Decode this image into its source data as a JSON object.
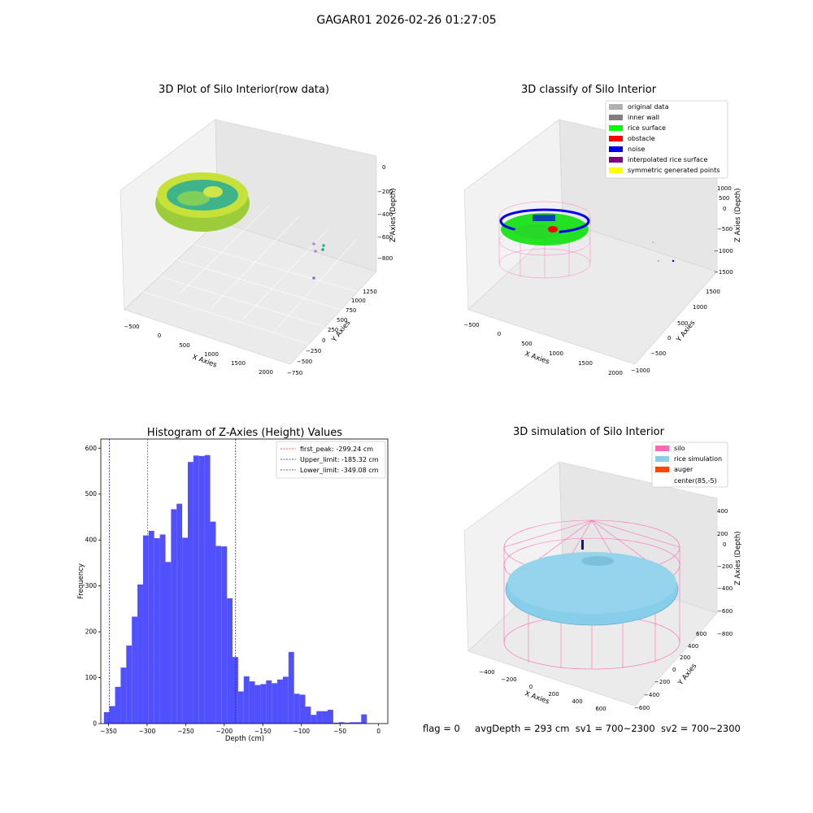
{
  "figure_title": "GAGAR01 2026-02-26 01:27:05",
  "footer": {
    "flag": "flag = 0",
    "avg_depth": "avgDepth = 293 cm",
    "sv1": "sv1 = 700~2300",
    "sv2": "sv2 = 700~2300"
  },
  "colors": {
    "hist_bar": "#5050ff",
    "first_peak": "#d62728",
    "limits": "#1f1fb4",
    "original": "#b0b0b0",
    "inner_wall": "#808080",
    "rice_surface": "#00ff00",
    "obstacle": "#ff0000",
    "noise": "#0000ee",
    "interpolated": "#800080",
    "symmetric": "#ffff00",
    "silo": "#ff69b4",
    "rice_sim": "#87ceeb",
    "auger": "#ff4500"
  },
  "panels": {
    "raw": {
      "title": "3D Plot of Silo Interior(row data)",
      "x_label": "X Axies",
      "y_label": "Y Axies",
      "z_label": "Z Axies (Depth)",
      "x_ticks": [
        "−500",
        "0",
        "500",
        "1000",
        "1500",
        "2000"
      ],
      "y_ticks": [
        "−750",
        "−500",
        "−250",
        "0",
        "250",
        "500",
        "750",
        "1000",
        "1250"
      ],
      "z_ticks": [
        "0",
        "−200",
        "−400",
        "−600",
        "−800"
      ]
    },
    "classify": {
      "title": "3D classify of Silo Interior",
      "x_label": "X Axies",
      "y_label": "Y Axies",
      "z_label": "Z Axies (Depth)",
      "x_ticks": [
        "−500",
        "0",
        "500",
        "1000",
        "1500",
        "2000"
      ],
      "y_ticks": [
        "−1000",
        "−500",
        "0",
        "500",
        "1000",
        "1500"
      ],
      "z_ticks": [
        "1000",
        "500",
        "0",
        "−500",
        "−1000",
        "−1500"
      ],
      "legend": [
        "original data",
        "inner wall",
        "rice surface",
        "obstacle",
        "noise",
        "interpolated rice surface",
        "symmetric generated points"
      ]
    },
    "simulation": {
      "title": "3D simulation of Silo Interior",
      "x_label": "X Axies",
      "y_label": "Y Axies",
      "z_label": "Z Axies (Depth)",
      "x_ticks": [
        "−400",
        "−200",
        "0",
        "200",
        "400",
        "600"
      ],
      "y_ticks": [
        "−600",
        "−400",
        "−200",
        "0",
        "200",
        "400",
        "600"
      ],
      "z_ticks": [
        "400",
        "200",
        "0",
        "−200",
        "−400",
        "−600",
        "−800"
      ],
      "legend": [
        "silo",
        "rice simulation",
        "auger",
        "center(85,-5)"
      ]
    }
  },
  "chart_data": {
    "type": "bar",
    "title": "Histogram of Z-Axies (Height) Values",
    "xlabel": "Depth (cm)",
    "ylabel": "Frequency",
    "xlim": [
      -360,
      12
    ],
    "ylim": [
      0,
      620
    ],
    "x_ticks": [
      -350,
      -300,
      -250,
      -200,
      -150,
      -100,
      -50,
      0
    ],
    "x_tick_labels": [
      "−350",
      "−300",
      "−250",
      "−200",
      "−150",
      "−100",
      "−50",
      "0"
    ],
    "y_ticks": [
      0,
      100,
      200,
      300,
      400,
      500,
      600
    ],
    "bin_start": -356,
    "bin_width": 7.25,
    "values": [
      25,
      38,
      80,
      122,
      170,
      233,
      303,
      410,
      420,
      404,
      412,
      352,
      467,
      479,
      405,
      570,
      584,
      583,
      585,
      440,
      387,
      386,
      273,
      145,
      70,
      103,
      92,
      84,
      86,
      94,
      88,
      96,
      102,
      156,
      65,
      63,
      37,
      19,
      27,
      27,
      30,
      2,
      3,
      2,
      3,
      3,
      20
    ],
    "lines": [
      {
        "label": "first_peak: -299.24 cm",
        "x": -299.24,
        "color": "#d62728"
      },
      {
        "label": "Upper_limit: -185.32 cm",
        "x": -185.32,
        "color": "#1f1fb4"
      },
      {
        "label": "Lower_limit: -349.08 cm",
        "x": -349.08,
        "color": "#1f1fb4"
      }
    ],
    "legend_position": "top-right"
  }
}
